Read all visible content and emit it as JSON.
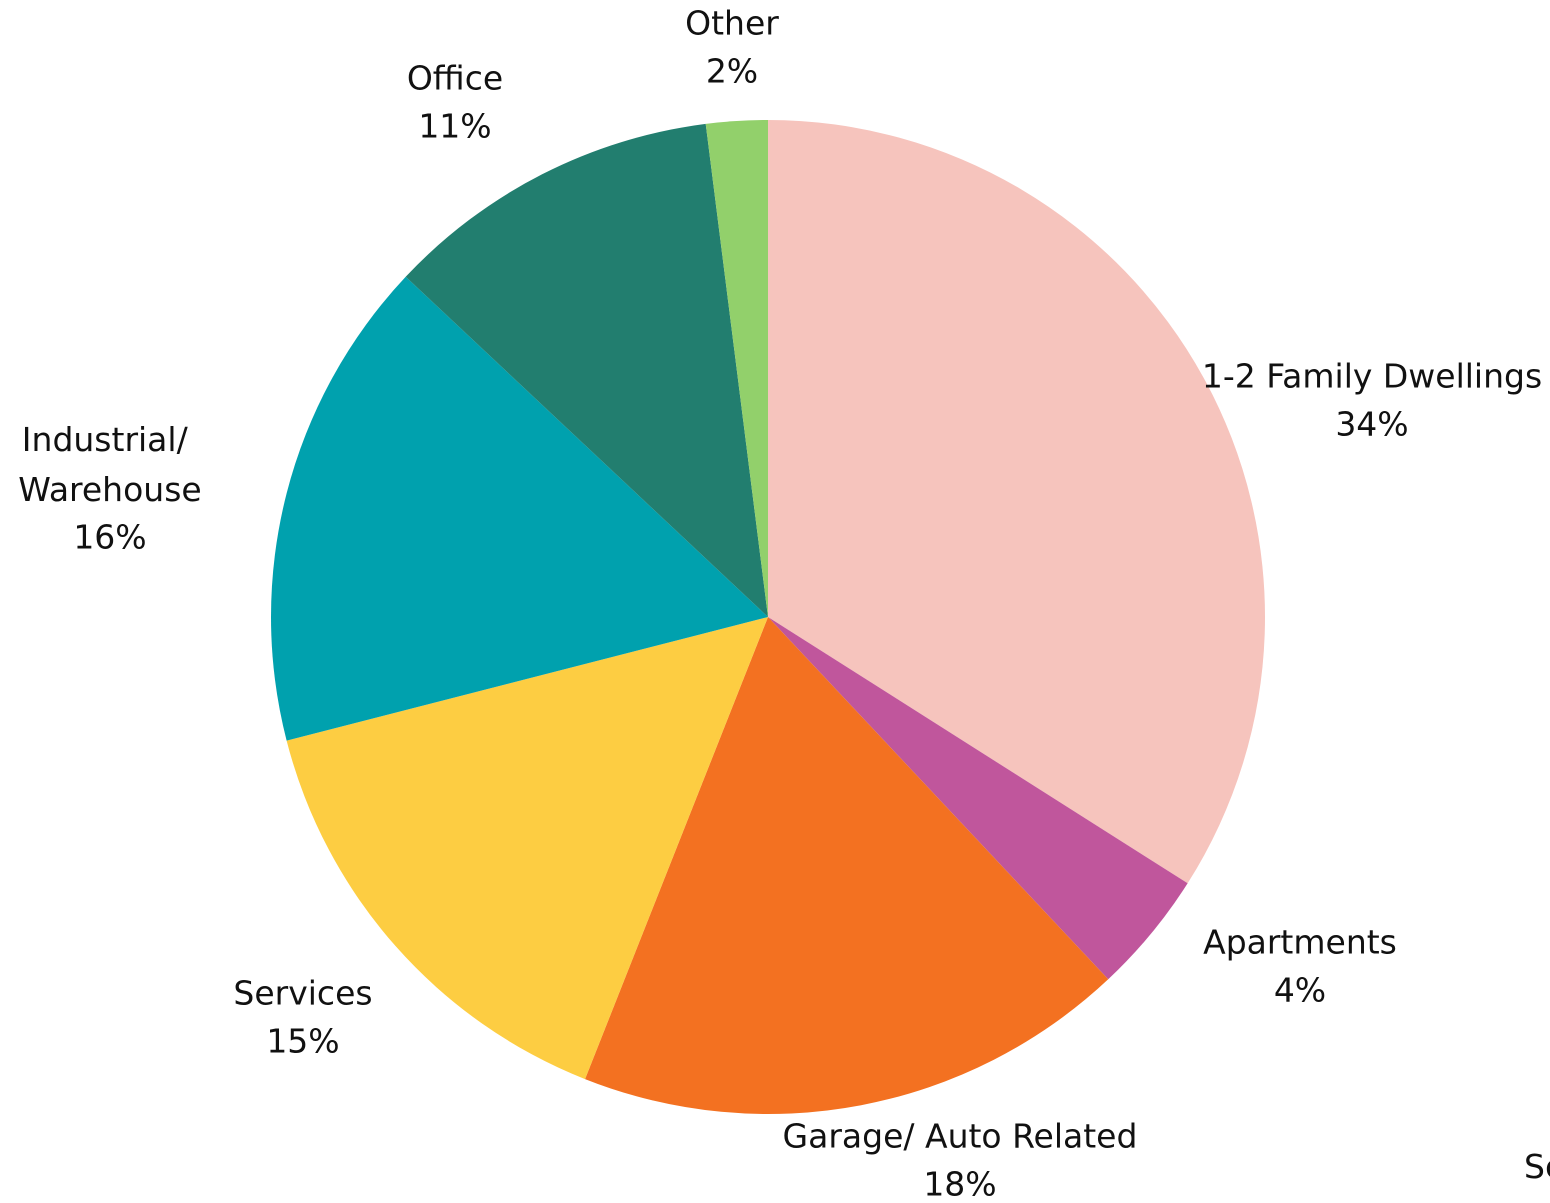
{
  "chart_data": {
    "type": "pie",
    "categories": [
      "1-2 Family Dwellings",
      "Apartments",
      "Garage/ Auto Related",
      "Services",
      "Industrial/ Warehouse",
      "Office",
      "Other"
    ],
    "values": [
      34,
      4,
      18,
      15,
      16,
      11,
      2
    ],
    "value_labels": [
      "34%",
      "4%",
      "18%",
      "15%",
      "16%",
      "11%",
      "2%"
    ],
    "colors": [
      "#f6c4bd",
      "#c0569c",
      "#f37121",
      "#fdcd42",
      "#00a1ae",
      "#227e6f",
      "#92d06b"
    ],
    "source": "Sc"
  }
}
